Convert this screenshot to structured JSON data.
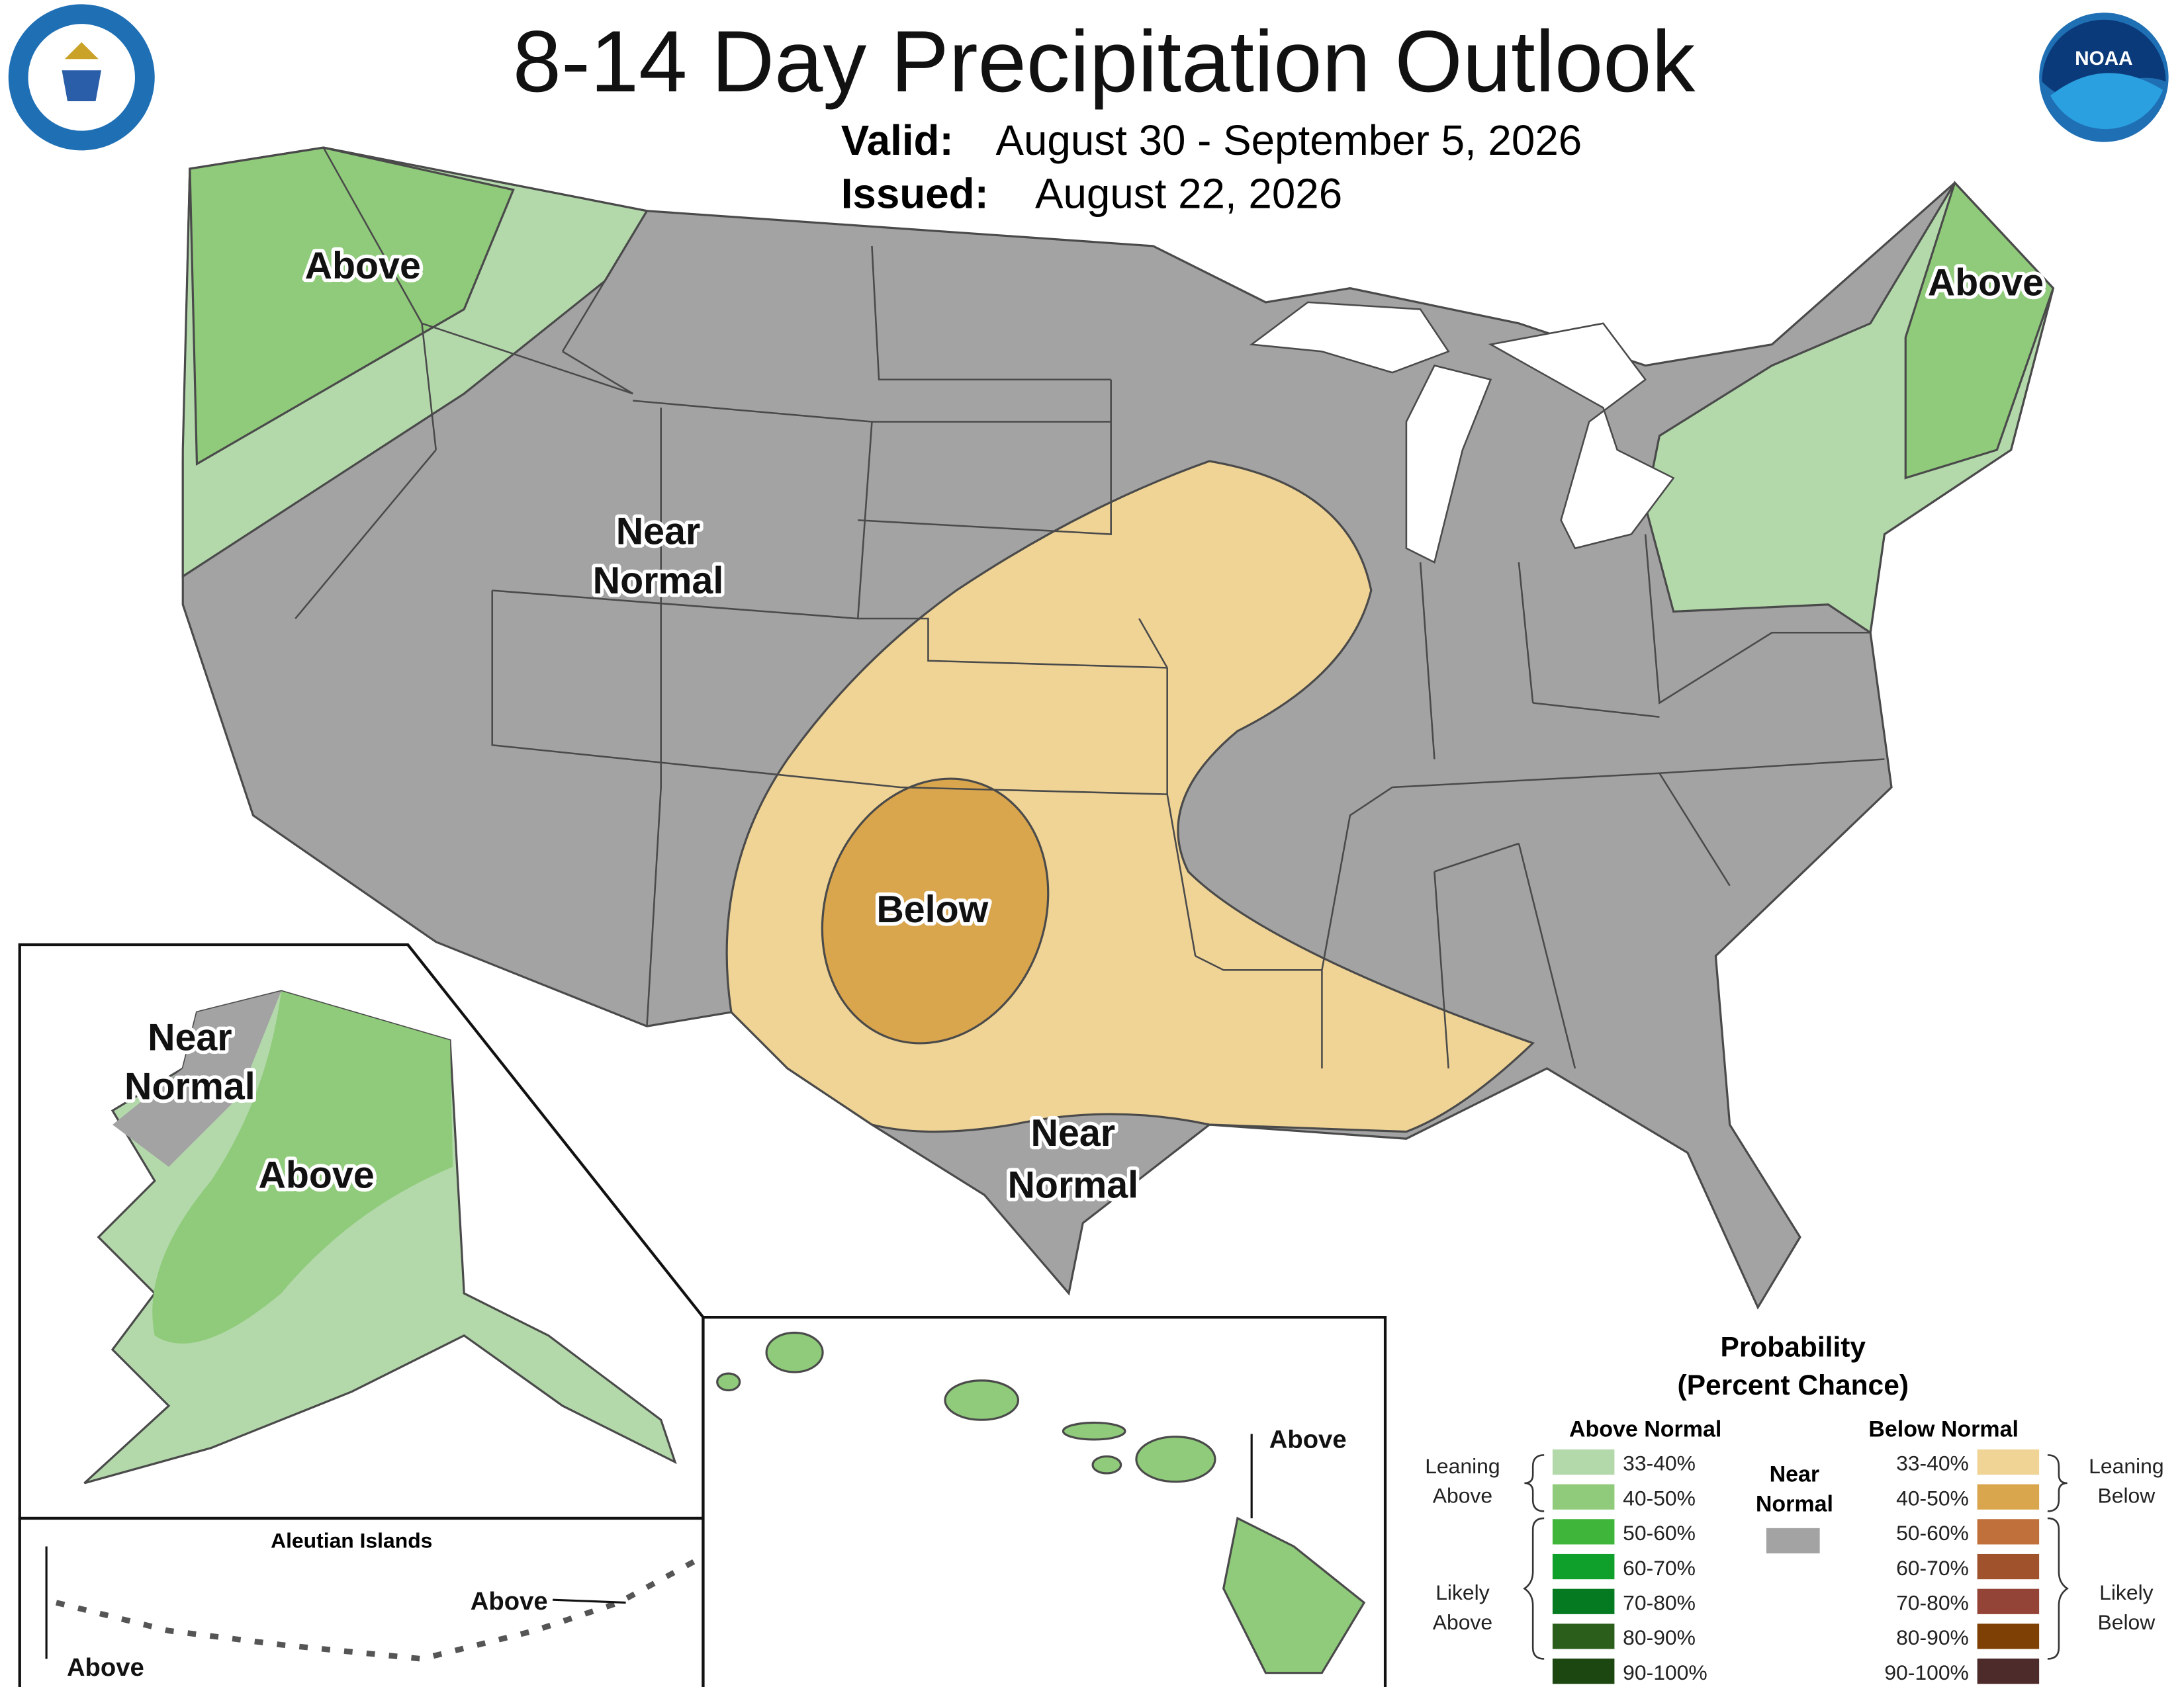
{
  "header": {
    "title": "8-14 Day Precipitation Outlook",
    "valid_label": "Valid:",
    "valid": "August 30 - September 5, 2026",
    "issued_label": "Issued:",
    "issued": "August 22, 2026",
    "noaa_logo": "NOAA"
  },
  "map_labels": {
    "northwest": "Above",
    "northeast": "Above",
    "west": [
      "Near",
      "Normal"
    ],
    "southern_plains": "Below",
    "texas": [
      "Near",
      "Normal"
    ],
    "alaska_west": [
      "Near",
      "Normal"
    ],
    "alaska": "Above",
    "hawaii": "Above",
    "aleutian_title": "Aleutian Islands",
    "aleutian_east": "Above",
    "aleutian_west": "Above"
  },
  "legend": {
    "title": "Probability",
    "subtitle": "(Percent Chance)",
    "above_heading": "Above Normal",
    "below_heading": "Below Normal",
    "near_heading": [
      "Near",
      "Normal"
    ],
    "near_color": "#a3a3a3",
    "leaning_above": [
      "Leaning",
      "Above"
    ],
    "likely_above": [
      "Likely",
      "Above"
    ],
    "leaning_below": [
      "Leaning",
      "Below"
    ],
    "likely_below": [
      "Likely",
      "Below"
    ],
    "above": [
      {
        "label": "33-40%",
        "color": "#b3d9ab"
      },
      {
        "label": "40-50%",
        "color": "#8fcb7a"
      },
      {
        "label": "50-60%",
        "color": "#3fb53a"
      },
      {
        "label": "60-70%",
        "color": "#0ea02a"
      },
      {
        "label": "70-80%",
        "color": "#067a21"
      },
      {
        "label": "80-90%",
        "color": "#2a5e1a"
      },
      {
        "label": "90-100%",
        "color": "#1d4710"
      }
    ],
    "below": [
      {
        "label": "33-40%",
        "color": "#f0d496"
      },
      {
        "label": "40-50%",
        "color": "#d9a54d"
      },
      {
        "label": "50-60%",
        "color": "#c0703a"
      },
      {
        "label": "60-70%",
        "color": "#a0522d"
      },
      {
        "label": "70-80%",
        "color": "#944436"
      },
      {
        "label": "80-90%",
        "color": "#7f4006"
      },
      {
        "label": "90-100%",
        "color": "#4d2b2b"
      }
    ]
  }
}
